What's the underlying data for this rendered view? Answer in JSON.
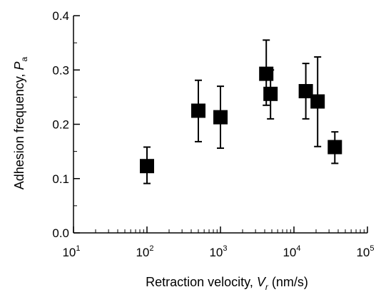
{
  "chart_data": {
    "type": "scatter",
    "title": "",
    "xlabel": {
      "prefix": "Retraction velocity, ",
      "symbol": "V",
      "subscript": "r",
      "unit": " (nm/s)"
    },
    "ylabel": {
      "prefix": "Adhesion frequency, ",
      "symbol": "P",
      "subscript": "a"
    },
    "x_scale": "log",
    "xlim": [
      10,
      100000
    ],
    "ylim": [
      0.0,
      0.4
    ],
    "x_ticks": [
      {
        "base": "10",
        "exp": "1",
        "value": 10
      },
      {
        "base": "10",
        "exp": "2",
        "value": 100
      },
      {
        "base": "10",
        "exp": "3",
        "value": 1000
      },
      {
        "base": "10",
        "exp": "4",
        "value": 10000
      },
      {
        "base": "10",
        "exp": "5",
        "value": 100000
      }
    ],
    "y_ticks": [
      {
        "label": "0.0",
        "value": 0.0
      },
      {
        "label": "0.1",
        "value": 0.1
      },
      {
        "label": "0.2",
        "value": 0.2
      },
      {
        "label": "0.3",
        "value": 0.3
      },
      {
        "label": "0.4",
        "value": 0.4
      }
    ],
    "grid": false,
    "marker": "filled-square",
    "marker_color": "#000000",
    "points": [
      {
        "x": 100,
        "y": 0.123,
        "err_low": 0.091,
        "err_high": 0.158
      },
      {
        "x": 500,
        "y": 0.225,
        "err_low": 0.168,
        "err_high": 0.281
      },
      {
        "x": 1000,
        "y": 0.213,
        "err_low": 0.156,
        "err_high": 0.27
      },
      {
        "x": 4200,
        "y": 0.293,
        "err_low": 0.235,
        "err_high": 0.355
      },
      {
        "x": 4800,
        "y": 0.256,
        "err_low": 0.21,
        "err_high": 0.3
      },
      {
        "x": 14500,
        "y": 0.261,
        "err_low": 0.21,
        "err_high": 0.312
      },
      {
        "x": 21000,
        "y": 0.242,
        "err_low": 0.159,
        "err_high": 0.324
      },
      {
        "x": 36000,
        "y": 0.158,
        "err_low": 0.128,
        "err_high": 0.186
      }
    ]
  }
}
